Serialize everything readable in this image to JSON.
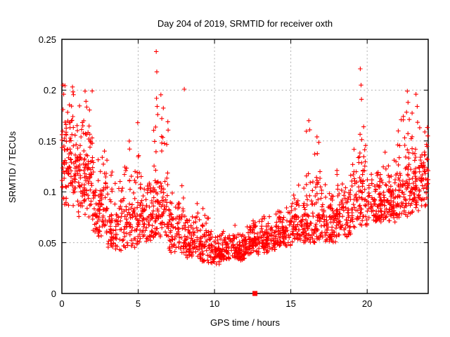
{
  "chart_data": {
    "type": "scatter",
    "title": "Day 204 of 2019, SRMTID for receiver oxth",
    "xlabel": "GPS time / hours",
    "ylabel": "SRMTID / TECUs",
    "xlim": [
      0,
      24
    ],
    "ylim": [
      0,
      0.25
    ],
    "xticks": [
      0,
      5,
      10,
      15,
      20
    ],
    "yticks": [
      0,
      0.05,
      0.1,
      0.15,
      0.2,
      0.25
    ],
    "grid": true,
    "grid_style": "dashed-gray",
    "legend": "none",
    "marker": "plus",
    "marker_color": "#ff0000",
    "series_name": "SRMTID",
    "point_count_approx": 2180,
    "hourly_bins": {
      "fields": [
        "hour_start",
        "count",
        "y_min",
        "y_max",
        "skew"
      ],
      "rows": [
        [
          0,
          110,
          0.085,
          0.215,
          1.6
        ],
        [
          1,
          110,
          0.075,
          0.205,
          1.7
        ],
        [
          2,
          95,
          0.055,
          0.155,
          1.8
        ],
        [
          3,
          75,
          0.04,
          0.125,
          1.8
        ],
        [
          4,
          85,
          0.045,
          0.165,
          2.0
        ],
        [
          5,
          90,
          0.05,
          0.16,
          2.0
        ],
        [
          6,
          100,
          0.055,
          0.2,
          2.2
        ],
        [
          7,
          80,
          0.04,
          0.115,
          1.9
        ],
        [
          8,
          80,
          0.035,
          0.095,
          1.8
        ],
        [
          9,
          85,
          0.03,
          0.085,
          1.8
        ],
        [
          10,
          90,
          0.028,
          0.065,
          1.6
        ],
        [
          11,
          90,
          0.032,
          0.07,
          1.6
        ],
        [
          12,
          90,
          0.038,
          0.075,
          1.6
        ],
        [
          13,
          85,
          0.04,
          0.08,
          1.7
        ],
        [
          14,
          85,
          0.045,
          0.09,
          1.7
        ],
        [
          15,
          85,
          0.05,
          0.11,
          1.9
        ],
        [
          16,
          90,
          0.05,
          0.165,
          2.2
        ],
        [
          17,
          85,
          0.05,
          0.11,
          1.8
        ],
        [
          18,
          85,
          0.055,
          0.125,
          1.8
        ],
        [
          19,
          90,
          0.065,
          0.185,
          2.0
        ],
        [
          20,
          90,
          0.07,
          0.135,
          1.7
        ],
        [
          21,
          90,
          0.07,
          0.145,
          1.7
        ],
        [
          22,
          95,
          0.075,
          0.2,
          2.0
        ],
        [
          23,
          100,
          0.08,
          0.17,
          1.6
        ]
      ]
    },
    "outlier_points": [
      [
        0.08,
        0.205
      ],
      [
        0.12,
        0.196
      ],
      [
        1.52,
        0.199
      ],
      [
        1.58,
        0.189
      ],
      [
        4.97,
        0.168
      ],
      [
        6.18,
        0.238
      ],
      [
        6.22,
        0.218
      ],
      [
        6.2,
        0.192
      ],
      [
        6.24,
        0.184
      ],
      [
        6.28,
        0.176
      ],
      [
        8.02,
        0.201
      ],
      [
        16.18,
        0.17
      ],
      [
        16.24,
        0.161
      ],
      [
        19.55,
        0.221
      ],
      [
        19.6,
        0.205
      ],
      [
        19.63,
        0.191
      ],
      [
        22.63,
        0.199
      ],
      [
        22.68,
        0.188
      ],
      [
        23.2,
        0.196
      ],
      [
        23.28,
        0.184
      ]
    ],
    "flagged_point": {
      "x": 12.65,
      "y": 0,
      "marker": "filled-square"
    },
    "colors": {
      "points": "#ff0000",
      "grid": "#b0b0b0",
      "axis": "#000000",
      "background": "#ffffff"
    }
  }
}
